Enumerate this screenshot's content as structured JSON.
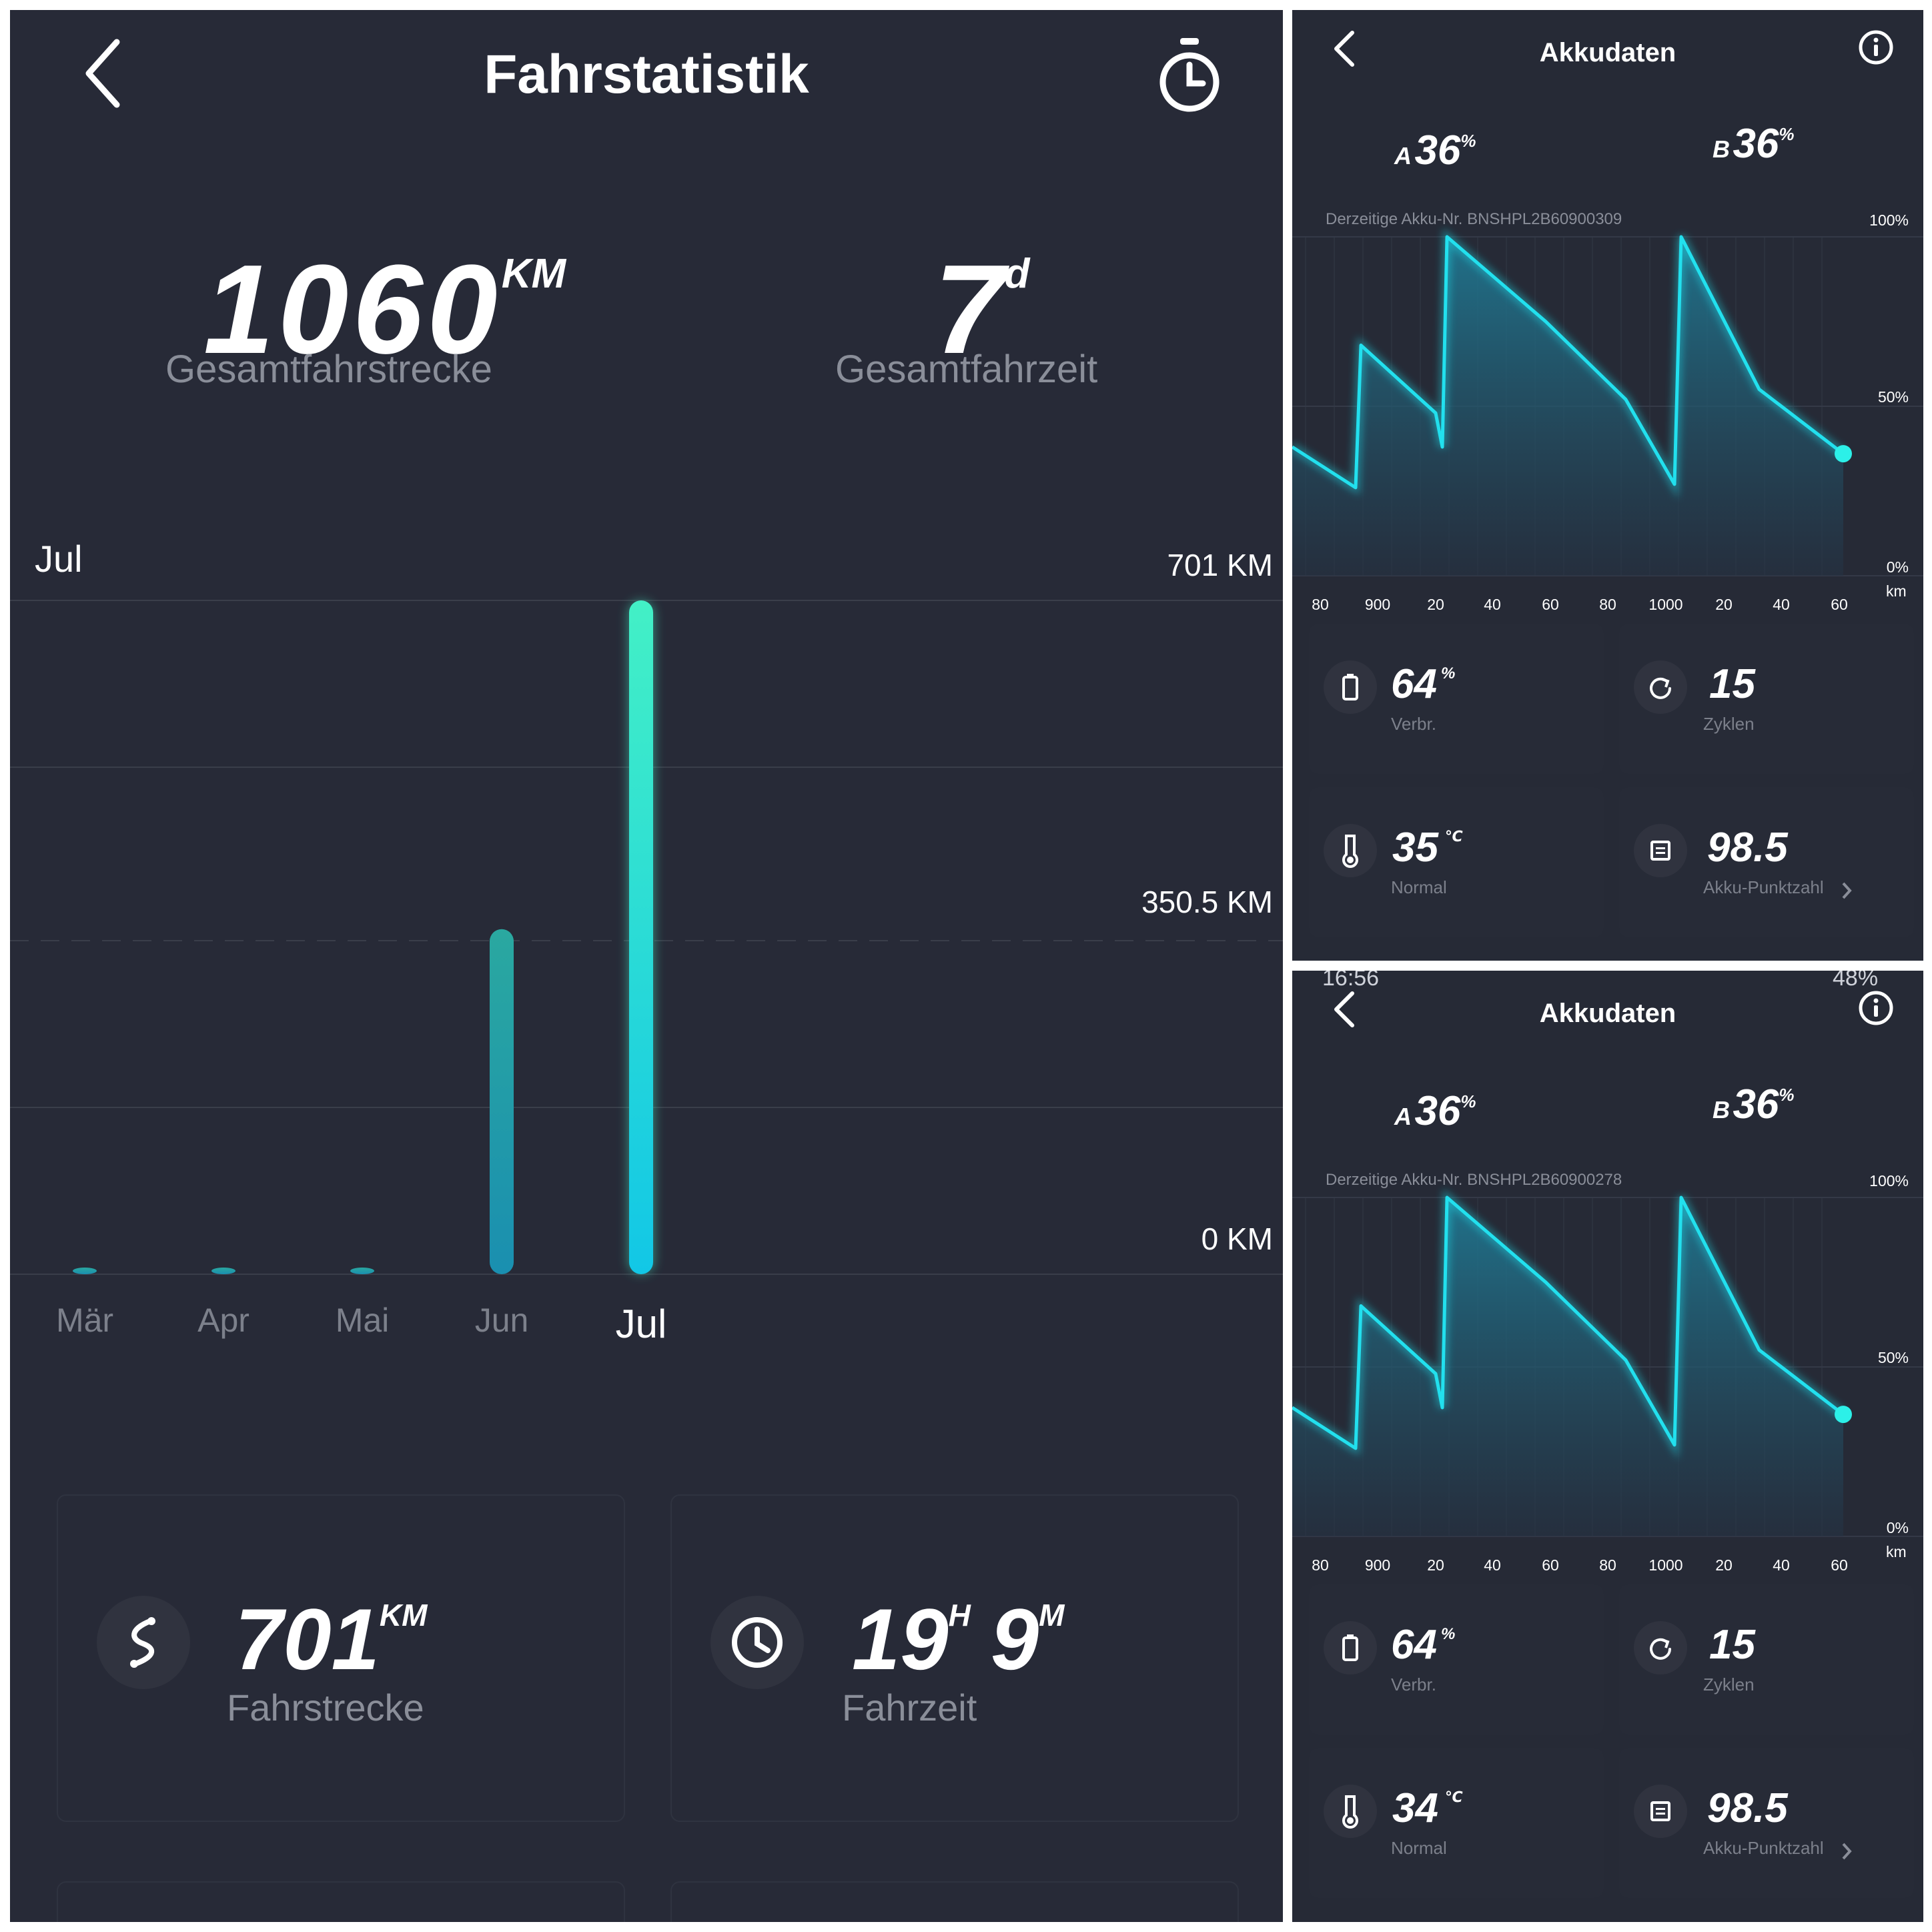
{
  "left": {
    "header": {
      "title": "Fahrstatistik"
    },
    "totals": {
      "distance_value": "1060",
      "distance_unit": "KM",
      "distance_label": "Gesamtfahrstrecke",
      "time_value": "7",
      "time_unit": "d",
      "time_label": "Gesamtfahrzeit"
    },
    "chart": {
      "selected_month": "Jul",
      "y_labels": [
        "701 KM",
        "350.5 KM",
        "0 KM"
      ]
    },
    "cards": {
      "distance_value": "701",
      "distance_unit": "KM",
      "distance_label": "Fahrstrecke",
      "time_hours": "19",
      "time_hours_unit": "H",
      "time_minutes": "9",
      "time_minutes_unit": "M",
      "time_label": "Fahrzeit"
    },
    "colors": {
      "bar_top": "#43f0c6",
      "bar_bottom": "#12c7e6",
      "bar_dim": "#2aa8a0"
    }
  },
  "chart_data": {
    "type": "bar",
    "categories": [
      "Mär",
      "Apr",
      "Mai",
      "Jun",
      "Jul"
    ],
    "values": [
      0,
      0,
      0,
      359,
      701
    ],
    "xlabel": "",
    "ylabel": "",
    "ylim": [
      0,
      701
    ]
  },
  "battery_screens": [
    {
      "status_bar": "",
      "title": "Akkudaten",
      "pack_a_label": "A",
      "pack_a_value": "36",
      "pack_a_unit": "%",
      "pack_b_label": "B",
      "pack_b_value": "36",
      "pack_b_unit": "%",
      "current_pack": "Derzeitige Akku-Nr. BNSHPL2B60900309",
      "y_labels": [
        "100%",
        "50%",
        "0%"
      ],
      "x_labels": [
        "80",
        "900",
        "20",
        "40",
        "60",
        "80",
        "1000",
        "20",
        "40",
        "60"
      ],
      "x_unit": "km",
      "consumption_value": "64",
      "consumption_unit": "%",
      "consumption_label": "Verbr.",
      "cycles_value": "15",
      "cycles_label": "Zyklen",
      "temp_value": "35",
      "temp_unit": "℃",
      "temp_label": "Normal",
      "score_value": "98.5",
      "score_label": "Akku-Punktzahl"
    },
    {
      "status_bar": "16:56",
      "status_right": "48%",
      "title": "Akkudaten",
      "pack_a_label": "A",
      "pack_a_value": "36",
      "pack_a_unit": "%",
      "pack_b_label": "B",
      "pack_b_value": "36",
      "pack_b_unit": "%",
      "current_pack": "Derzeitige Akku-Nr. BNSHPL2B60900278",
      "y_labels": [
        "100%",
        "50%",
        "0%"
      ],
      "x_labels": [
        "80",
        "900",
        "20",
        "40",
        "60",
        "80",
        "1000",
        "20",
        "40",
        "60"
      ],
      "x_unit": "km",
      "consumption_value": "64",
      "consumption_unit": "%",
      "consumption_label": "Verbr.",
      "cycles_value": "15",
      "cycles_label": "Zyklen",
      "temp_value": "34",
      "temp_unit": "℃",
      "temp_label": "Normal",
      "score_value": "98.5",
      "score_label": "Akku-Punktzahl"
    }
  ],
  "battery_chart_data": {
    "type": "area",
    "series": [
      {
        "values": [
          38,
          26,
          68,
          48,
          38,
          100,
          75,
          52,
          27,
          100,
          55,
          36
        ]
      }
    ],
    "ylim": [
      0,
      100
    ]
  }
}
